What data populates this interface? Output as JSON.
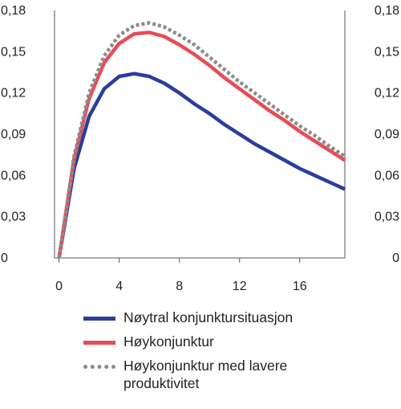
{
  "chart_data": {
    "type": "line",
    "x_ticks": [
      "0",
      "4",
      "8",
      "12",
      "16"
    ],
    "y_ticks": [
      "0",
      "0,03",
      "0,06",
      "0,09",
      "0,12",
      "0,15",
      "0,18"
    ],
    "xlim": [
      -0.3,
      19
    ],
    "ylim": [
      0,
      0.18
    ],
    "grid": false,
    "legend_position": "bottom",
    "dual_y_axis": true,
    "series": [
      {
        "name": "Nøytral konjunktursituasjon",
        "color": "#2b3d9b",
        "style": "solid",
        "x": [
          0,
          1,
          2,
          3,
          4,
          5,
          6,
          7,
          8,
          9,
          10,
          11,
          12,
          13,
          14,
          15,
          16,
          17,
          18,
          19
        ],
        "y": [
          0,
          0.065,
          0.103,
          0.123,
          0.132,
          0.134,
          0.132,
          0.127,
          0.12,
          0.112,
          0.105,
          0.097,
          0.09,
          0.083,
          0.077,
          0.071,
          0.065,
          0.06,
          0.055,
          0.05
        ]
      },
      {
        "name": "Høykonjunktur",
        "color": "#e84c56",
        "style": "solid",
        "x": [
          0,
          1,
          2,
          3,
          4,
          5,
          6,
          7,
          8,
          9,
          10,
          11,
          12,
          13,
          14,
          15,
          16,
          17,
          18,
          19
        ],
        "y": [
          0,
          0.072,
          0.116,
          0.142,
          0.156,
          0.163,
          0.164,
          0.161,
          0.155,
          0.148,
          0.14,
          0.131,
          0.123,
          0.115,
          0.107,
          0.1,
          0.092,
          0.085,
          0.078,
          0.071
        ]
      },
      {
        "name": "Høykonjunktur med lavere produktivitet",
        "color": "#8c8c8c",
        "style": "dotted",
        "x": [
          0,
          1,
          2,
          3,
          4,
          5,
          6,
          7,
          8,
          9,
          10,
          11,
          12,
          13,
          14,
          15,
          16,
          17,
          18,
          19
        ],
        "y": [
          0,
          0.074,
          0.12,
          0.147,
          0.162,
          0.169,
          0.171,
          0.168,
          0.162,
          0.155,
          0.146,
          0.137,
          0.128,
          0.12,
          0.112,
          0.104,
          0.096,
          0.089,
          0.081,
          0.074
        ]
      }
    ]
  }
}
